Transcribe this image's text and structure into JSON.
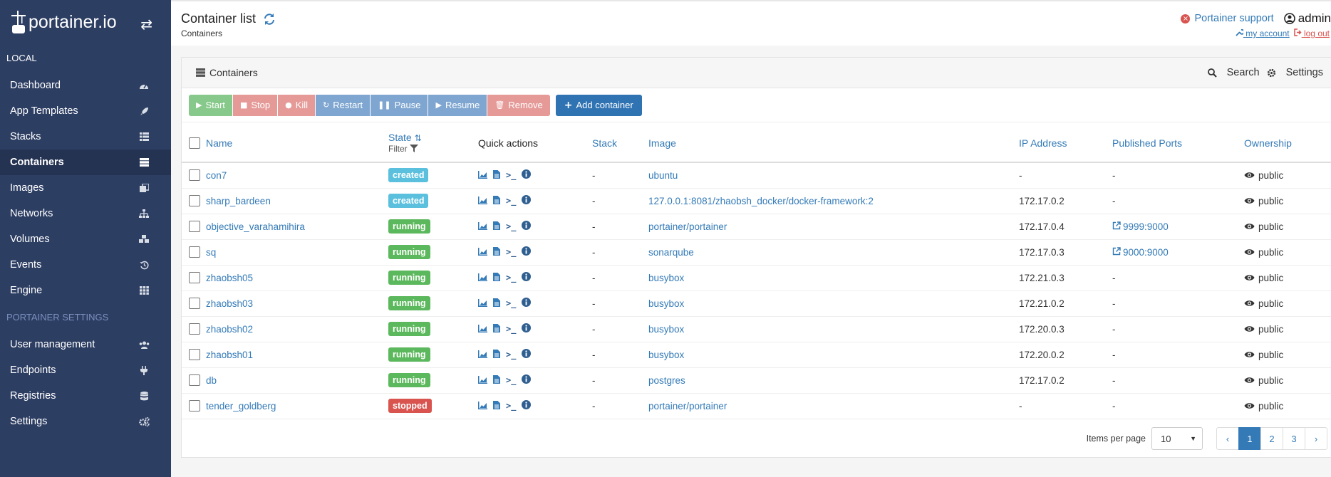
{
  "brand": {
    "name": "portainer.io"
  },
  "sidebar": {
    "section_local": "LOCAL",
    "items": [
      {
        "label": "Dashboard",
        "icon": "tachometer-icon"
      },
      {
        "label": "App Templates",
        "icon": "rocket-icon"
      },
      {
        "label": "Stacks",
        "icon": "list-icon"
      },
      {
        "label": "Containers",
        "icon": "server-icon"
      },
      {
        "label": "Images",
        "icon": "clone-icon"
      },
      {
        "label": "Networks",
        "icon": "sitemap-icon"
      },
      {
        "label": "Volumes",
        "icon": "cubes-icon"
      },
      {
        "label": "Events",
        "icon": "history-icon"
      },
      {
        "label": "Engine",
        "icon": "th-icon"
      }
    ],
    "section_settings": "PORTAINER SETTINGS",
    "settings_items": [
      {
        "label": "User management",
        "icon": "users-icon"
      },
      {
        "label": "Endpoints",
        "icon": "plug-icon"
      },
      {
        "label": "Registries",
        "icon": "database-icon"
      },
      {
        "label": "Settings",
        "icon": "cogs-icon"
      }
    ]
  },
  "header": {
    "title": "Container list",
    "subtitle": "Containers",
    "support": "Portainer support",
    "user": "admin",
    "my_account": "my account",
    "log_out": "log out"
  },
  "widget": {
    "title": "Containers",
    "search": "Search",
    "settings": "Settings"
  },
  "actions": {
    "start": "Start",
    "stop": "Stop",
    "kill": "Kill",
    "restart": "Restart",
    "pause": "Pause",
    "resume": "Resume",
    "remove": "Remove",
    "add": "Add container"
  },
  "table": {
    "headers": {
      "name": "Name",
      "state": "State",
      "filter": "Filter",
      "quick_actions": "Quick actions",
      "stack": "Stack",
      "image": "Image",
      "ip": "IP Address",
      "ports": "Published Ports",
      "ownership": "Ownership"
    },
    "rows": [
      {
        "name": "con7",
        "state": "created",
        "stack": "-",
        "image": "ubuntu",
        "ip": "-",
        "ports": "-",
        "ownership": "public"
      },
      {
        "name": "sharp_bardeen",
        "state": "created",
        "stack": "-",
        "image": "127.0.0.1:8081/zhaobsh_docker/docker-framework:2",
        "ip": "172.17.0.2",
        "ports": "-",
        "ownership": "public"
      },
      {
        "name": "objective_varahamihira",
        "state": "running",
        "stack": "-",
        "image": "portainer/portainer",
        "ip": "172.17.0.4",
        "ports": "9999:9000",
        "ownership": "public"
      },
      {
        "name": "sq",
        "state": "running",
        "stack": "-",
        "image": "sonarqube",
        "ip": "172.17.0.3",
        "ports": "9000:9000",
        "ownership": "public"
      },
      {
        "name": "zhaobsh05",
        "state": "running",
        "stack": "-",
        "image": "busybox",
        "ip": "172.21.0.3",
        "ports": "-",
        "ownership": "public"
      },
      {
        "name": "zhaobsh03",
        "state": "running",
        "stack": "-",
        "image": "busybox",
        "ip": "172.21.0.2",
        "ports": "-",
        "ownership": "public"
      },
      {
        "name": "zhaobsh02",
        "state": "running",
        "stack": "-",
        "image": "busybox",
        "ip": "172.20.0.3",
        "ports": "-",
        "ownership": "public"
      },
      {
        "name": "zhaobsh01",
        "state": "running",
        "stack": "-",
        "image": "busybox",
        "ip": "172.20.0.2",
        "ports": "-",
        "ownership": "public"
      },
      {
        "name": "db",
        "state": "running",
        "stack": "-",
        "image": "postgres",
        "ip": "172.17.0.2",
        "ports": "-",
        "ownership": "public"
      },
      {
        "name": "tender_goldberg",
        "state": "stopped",
        "stack": "-",
        "image": "portainer/portainer",
        "ip": "-",
        "ports": "-",
        "ownership": "public"
      }
    ]
  },
  "pagination": {
    "items_per_page_label": "Items per page",
    "items_per_page": "10",
    "prev": "‹",
    "pages": [
      "1",
      "2",
      "3"
    ],
    "current": "1",
    "next": "›"
  },
  "colors": {
    "sidebar": "#2d3e63",
    "accent": "#337ab7",
    "running": "#5cb85c",
    "created": "#5bc0de",
    "stopped": "#d9534f"
  }
}
